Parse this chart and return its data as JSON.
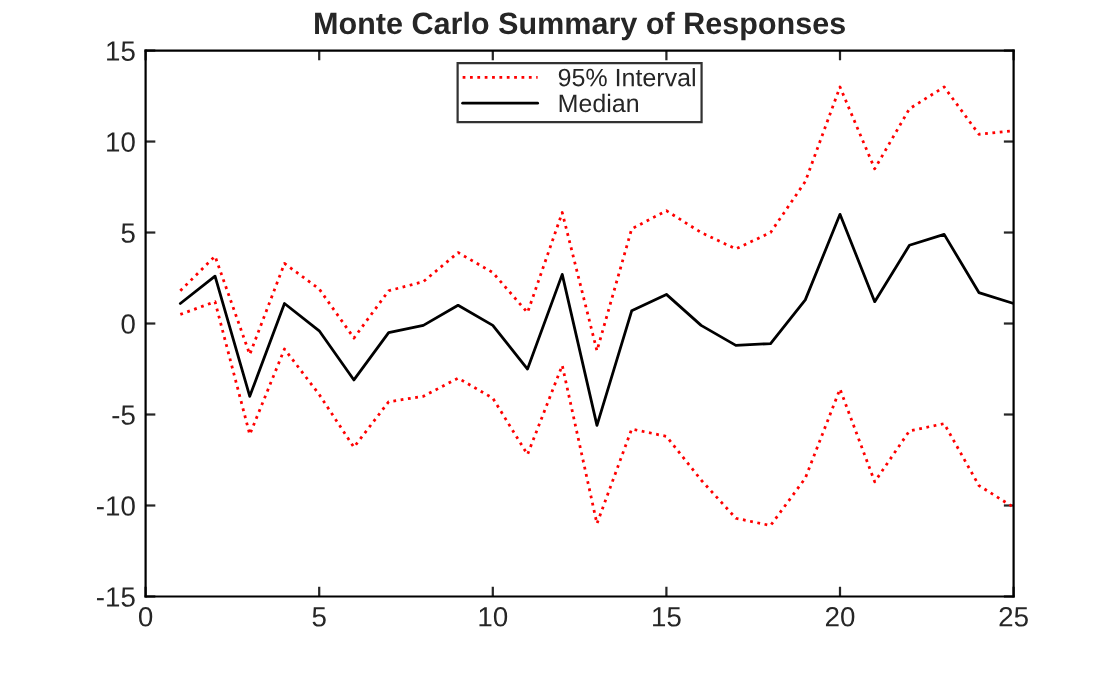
{
  "chart_data": {
    "type": "line",
    "title": "Monte Carlo Summary of Responses",
    "x": [
      1,
      2,
      3,
      4,
      5,
      6,
      7,
      8,
      9,
      10,
      11,
      12,
      13,
      14,
      15,
      16,
      17,
      18,
      19,
      20,
      21,
      22,
      23,
      24,
      25
    ],
    "series": [
      {
        "name": "95% Interval",
        "color": "#ff0000",
        "line_style": "dotted",
        "values": [
          1.8,
          3.7,
          -1.7,
          3.3,
          1.9,
          -0.8,
          1.8,
          2.3,
          3.9,
          2.8,
          0.6,
          6.1,
          -1.5,
          5.2,
          6.2,
          5.0,
          4.1,
          5.0,
          7.8,
          13.0,
          8.5,
          11.8,
          13.0,
          10.4,
          10.6
        ]
      },
      {
        "name": "Median",
        "color": "#000000",
        "line_style": "solid",
        "values": [
          1.1,
          2.6,
          -4.0,
          1.1,
          -0.4,
          -3.1,
          -0.5,
          -0.1,
          1.0,
          -0.1,
          -2.5,
          2.7,
          -5.6,
          0.7,
          1.6,
          -0.1,
          -1.2,
          -1.1,
          1.3,
          6.0,
          1.2,
          4.3,
          4.9,
          1.7,
          1.1
        ]
      },
      {
        "color": "#ff0000",
        "line_style": "dotted",
        "values": [
          0.5,
          1.2,
          -6.1,
          -1.4,
          -3.9,
          -6.8,
          -4.3,
          -4.0,
          -3.0,
          -4.1,
          -7.2,
          -2.3,
          -11.0,
          -5.8,
          -6.2,
          -8.6,
          -10.7,
          -11.1,
          -8.5,
          -3.6,
          -8.7,
          -5.9,
          -5.5,
          -8.9,
          -10.1
        ]
      }
    ],
    "xlim": [
      0,
      25
    ],
    "xticks": [
      0,
      5,
      10,
      15,
      20,
      25
    ],
    "ylim": [
      -15,
      15
    ],
    "yticks": [
      -15,
      -10,
      -5,
      0,
      5,
      10,
      15
    ],
    "grid": false,
    "legend": "top"
  }
}
